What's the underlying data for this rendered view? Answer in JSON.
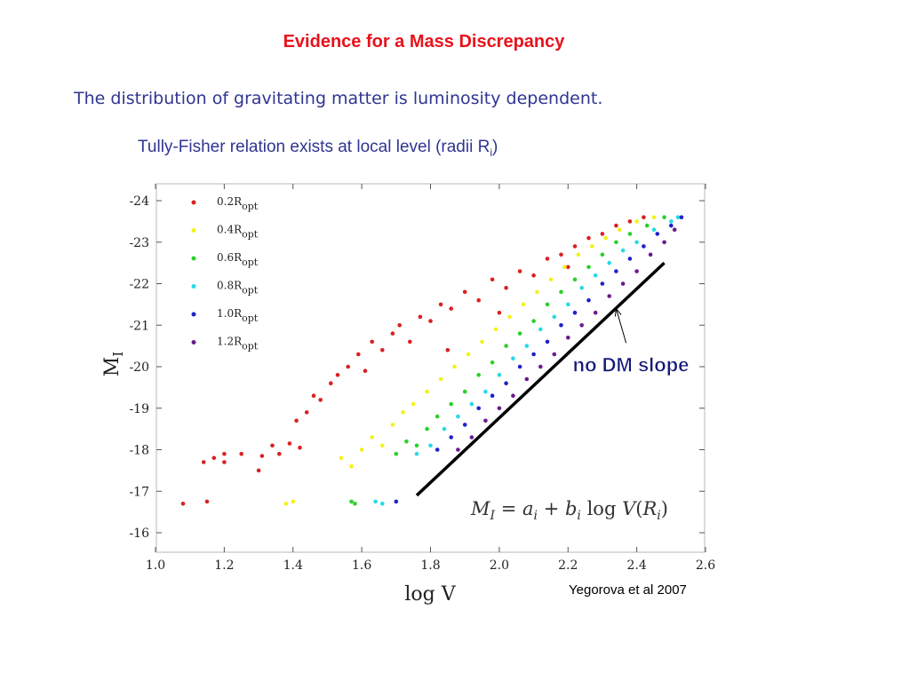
{
  "slide": {
    "title": "Evidence for a Mass Discrepancy",
    "line1": "The distribution of gravitating matter is luminosity dependent.",
    "line2_prefix": "Tully-Fisher relation exists at local level (radii R",
    "line2_sub": "i",
    "line2_suffix": ")",
    "credit": "Yegorova et al 2007"
  },
  "colors": {
    "title": "#e8121b",
    "text": "#2f3592",
    "series": [
      "#d92121",
      "#f2f21a",
      "#2bd02b",
      "#29d9e6",
      "#1e22c9",
      "#6a1a8f"
    ]
  },
  "chart_data": {
    "type": "scatter",
    "xlabel": "log V",
    "ylabel": "M",
    "ylabel_sub": "I",
    "xlim": [
      1.0,
      2.6
    ],
    "ylim": [
      -15.6,
      -24.3
    ],
    "x_ticks": [
      "1.0",
      "1.2",
      "1.4",
      "1.6",
      "1.8",
      "2.0",
      "2.2",
      "2.4",
      "2.6"
    ],
    "y_ticks": [
      "-24",
      "-23",
      "-22",
      "-21",
      "-20",
      "-19",
      "-18",
      "-17",
      "-16"
    ],
    "legend_position": "top-left",
    "series": [
      {
        "name": "0.2R",
        "name_sub": "opt",
        "points": [
          [
            1.08,
            -16.7
          ],
          [
            1.15,
            -16.75
          ],
          [
            1.14,
            -17.7
          ],
          [
            1.17,
            -17.8
          ],
          [
            1.2,
            -17.9
          ],
          [
            1.2,
            -17.7
          ],
          [
            1.25,
            -17.9
          ],
          [
            1.3,
            -17.5
          ],
          [
            1.31,
            -17.85
          ],
          [
            1.34,
            -18.1
          ],
          [
            1.36,
            -17.9
          ],
          [
            1.39,
            -18.15
          ],
          [
            1.42,
            -18.05
          ],
          [
            1.41,
            -18.7
          ],
          [
            1.44,
            -18.9
          ],
          [
            1.46,
            -19.3
          ],
          [
            1.48,
            -19.2
          ],
          [
            1.51,
            -19.6
          ],
          [
            1.53,
            -19.8
          ],
          [
            1.56,
            -20.0
          ],
          [
            1.59,
            -20.3
          ],
          [
            1.61,
            -19.9
          ],
          [
            1.63,
            -20.6
          ],
          [
            1.66,
            -20.4
          ],
          [
            1.69,
            -20.8
          ],
          [
            1.71,
            -21.0
          ],
          [
            1.74,
            -20.6
          ],
          [
            1.77,
            -21.2
          ],
          [
            1.8,
            -21.1
          ],
          [
            1.83,
            -21.5
          ],
          [
            1.86,
            -21.4
          ],
          [
            1.9,
            -21.8
          ],
          [
            1.94,
            -21.6
          ],
          [
            1.98,
            -22.1
          ],
          [
            2.02,
            -21.9
          ],
          [
            2.06,
            -22.3
          ],
          [
            2.1,
            -22.2
          ],
          [
            2.14,
            -22.6
          ],
          [
            2.18,
            -22.7
          ],
          [
            2.22,
            -22.9
          ],
          [
            2.26,
            -23.1
          ],
          [
            2.3,
            -23.2
          ],
          [
            2.34,
            -23.4
          ],
          [
            2.38,
            -23.5
          ],
          [
            2.42,
            -23.6
          ],
          [
            2.2,
            -22.4
          ],
          [
            2.0,
            -21.3
          ],
          [
            1.85,
            -20.4
          ]
        ]
      },
      {
        "name": "0.4R",
        "name_sub": "opt",
        "points": [
          [
            1.38,
            -16.7
          ],
          [
            1.4,
            -16.75
          ],
          [
            1.54,
            -17.8
          ],
          [
            1.57,
            -17.6
          ],
          [
            1.6,
            -18.0
          ],
          [
            1.63,
            -18.3
          ],
          [
            1.66,
            -18.1
          ],
          [
            1.69,
            -18.6
          ],
          [
            1.72,
            -18.9
          ],
          [
            1.75,
            -19.1
          ],
          [
            1.79,
            -19.4
          ],
          [
            1.83,
            -19.7
          ],
          [
            1.87,
            -20.0
          ],
          [
            1.91,
            -20.3
          ],
          [
            1.95,
            -20.6
          ],
          [
            1.99,
            -20.9
          ],
          [
            2.03,
            -21.2
          ],
          [
            2.07,
            -21.5
          ],
          [
            2.11,
            -21.8
          ],
          [
            2.15,
            -22.1
          ],
          [
            2.19,
            -22.4
          ],
          [
            2.23,
            -22.7
          ],
          [
            2.27,
            -22.9
          ],
          [
            2.31,
            -23.1
          ],
          [
            2.35,
            -23.3
          ],
          [
            2.4,
            -23.5
          ],
          [
            2.45,
            -23.6
          ]
        ]
      },
      {
        "name": "0.6R",
        "name_sub": "opt",
        "points": [
          [
            1.57,
            -16.75
          ],
          [
            1.58,
            -16.7
          ],
          [
            1.7,
            -17.9
          ],
          [
            1.73,
            -18.2
          ],
          [
            1.76,
            -18.1
          ],
          [
            1.79,
            -18.5
          ],
          [
            1.82,
            -18.8
          ],
          [
            1.86,
            -19.1
          ],
          [
            1.9,
            -19.4
          ],
          [
            1.94,
            -19.8
          ],
          [
            1.98,
            -20.1
          ],
          [
            2.02,
            -20.5
          ],
          [
            2.06,
            -20.8
          ],
          [
            2.1,
            -21.1
          ],
          [
            2.14,
            -21.5
          ],
          [
            2.18,
            -21.8
          ],
          [
            2.22,
            -22.1
          ],
          [
            2.26,
            -22.4
          ],
          [
            2.3,
            -22.7
          ],
          [
            2.34,
            -23.0
          ],
          [
            2.38,
            -23.2
          ],
          [
            2.43,
            -23.4
          ],
          [
            2.48,
            -23.6
          ]
        ]
      },
      {
        "name": "0.8R",
        "name_sub": "opt",
        "points": [
          [
            1.64,
            -16.75
          ],
          [
            1.66,
            -16.7
          ],
          [
            1.76,
            -17.9
          ],
          [
            1.8,
            -18.1
          ],
          [
            1.84,
            -18.5
          ],
          [
            1.88,
            -18.8
          ],
          [
            1.92,
            -19.1
          ],
          [
            1.96,
            -19.4
          ],
          [
            2.0,
            -19.8
          ],
          [
            2.04,
            -20.2
          ],
          [
            2.08,
            -20.5
          ],
          [
            2.12,
            -20.9
          ],
          [
            2.16,
            -21.2
          ],
          [
            2.2,
            -21.5
          ],
          [
            2.24,
            -21.9
          ],
          [
            2.28,
            -22.2
          ],
          [
            2.32,
            -22.5
          ],
          [
            2.36,
            -22.8
          ],
          [
            2.4,
            -23.0
          ],
          [
            2.45,
            -23.3
          ],
          [
            2.5,
            -23.5
          ],
          [
            2.52,
            -23.6
          ]
        ]
      },
      {
        "name": "1.0R",
        "name_sub": "opt",
        "points": [
          [
            1.7,
            -16.75
          ],
          [
            1.82,
            -18.0
          ],
          [
            1.86,
            -18.3
          ],
          [
            1.9,
            -18.6
          ],
          [
            1.94,
            -19.0
          ],
          [
            1.98,
            -19.3
          ],
          [
            2.02,
            -19.6
          ],
          [
            2.06,
            -20.0
          ],
          [
            2.1,
            -20.3
          ],
          [
            2.14,
            -20.6
          ],
          [
            2.18,
            -21.0
          ],
          [
            2.22,
            -21.3
          ],
          [
            2.26,
            -21.6
          ],
          [
            2.3,
            -22.0
          ],
          [
            2.34,
            -22.3
          ],
          [
            2.38,
            -22.6
          ],
          [
            2.42,
            -22.9
          ],
          [
            2.46,
            -23.2
          ],
          [
            2.5,
            -23.4
          ],
          [
            2.53,
            -23.6
          ]
        ]
      },
      {
        "name": "1.2R",
        "name_sub": "opt",
        "points": [
          [
            1.88,
            -18.0
          ],
          [
            1.92,
            -18.3
          ],
          [
            1.96,
            -18.7
          ],
          [
            2.0,
            -19.0
          ],
          [
            2.04,
            -19.3
          ],
          [
            2.08,
            -19.7
          ],
          [
            2.12,
            -20.0
          ],
          [
            2.16,
            -20.3
          ],
          [
            2.2,
            -20.7
          ],
          [
            2.24,
            -21.0
          ],
          [
            2.28,
            -21.3
          ],
          [
            2.32,
            -21.7
          ],
          [
            2.36,
            -22.0
          ],
          [
            2.4,
            -22.3
          ],
          [
            2.44,
            -22.7
          ],
          [
            2.48,
            -23.0
          ],
          [
            2.51,
            -23.3
          ]
        ]
      }
    ],
    "fit_line": {
      "x": [
        1.76,
        2.48
      ],
      "y": [
        -16.9,
        -22.5
      ]
    },
    "annotation": {
      "label": "no DM slope",
      "x": 2.4,
      "y": -20.1,
      "arrow_to": [
        2.34,
        -21.4
      ]
    },
    "equation": {
      "lhs": "M",
      "lhs_sub": "I",
      "eq": " = ",
      "a": "a",
      "a_sub": "i",
      "plus": " + ",
      "b": "b",
      "b_sub": "i",
      "log": " log ",
      "v": "V",
      "paren_open": "(",
      "r": "R",
      "r_sub": "i",
      "paren_close": ")"
    }
  }
}
